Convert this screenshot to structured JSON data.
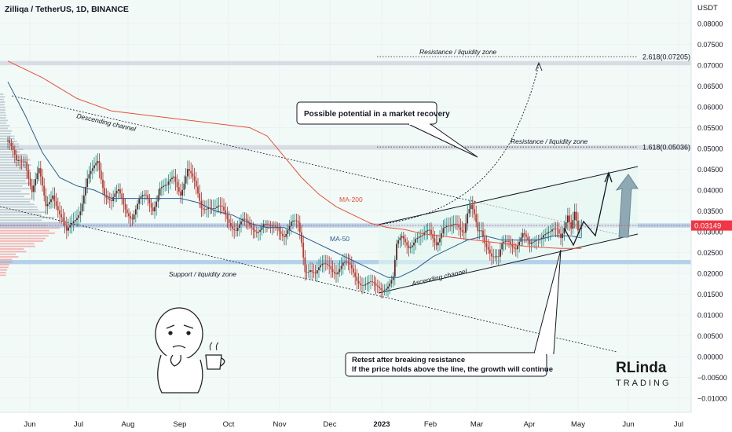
{
  "header": {
    "title": "Zilliqa / TetherUS, 1D, BINANCE"
  },
  "axis": {
    "unit": "USDT"
  },
  "chart_data": {
    "type": "candlestick",
    "title": "Zilliqa / TetherUS, 1D, BINANCE",
    "ylabel": "USDT",
    "ylim": [
      -0.011,
      0.0835
    ],
    "y_ticks": [
      0.08,
      0.075,
      0.07,
      0.065,
      0.06,
      0.055,
      0.05,
      0.045,
      0.04,
      0.035,
      0.03,
      0.025,
      0.02,
      0.015,
      0.01,
      0.005,
      0,
      -0.005,
      -0.01
    ],
    "y_tick_labels": [
      "0.08000",
      "0.07500",
      "0.07000",
      "0.06500",
      "0.06000",
      "0.05500",
      "0.05000",
      "0.04500",
      "0.04000",
      "0.03500",
      "0.03000",
      "0.02500",
      "0.02000",
      "0.01500",
      "0.01000",
      "0.00500",
      "0.00000",
      "−0.00500",
      "−0.01000"
    ],
    "x_ticks": [
      "Jun",
      "Jul",
      "Aug",
      "Sep",
      "Oct",
      "Nov",
      "Dec",
      "2023",
      "Feb",
      "Mar",
      "Apr",
      "May",
      "Jun",
      "Jul"
    ],
    "current_price": {
      "value": 0.03149,
      "label": "0.03149",
      "color": "#f23645"
    },
    "price_path": [
      [
        0,
        0.052
      ],
      [
        5,
        0.046
      ],
      [
        10,
        0.048
      ],
      [
        14,
        0.04
      ],
      [
        18,
        0.044
      ],
      [
        22,
        0.036
      ],
      [
        26,
        0.04
      ],
      [
        30,
        0.034
      ],
      [
        34,
        0.029
      ],
      [
        38,
        0.033
      ],
      [
        42,
        0.036
      ],
      [
        46,
        0.042
      ],
      [
        49,
        0.044
      ],
      [
        52,
        0.047
      ],
      [
        56,
        0.04
      ],
      [
        60,
        0.037
      ],
      [
        64,
        0.039
      ],
      [
        68,
        0.036
      ],
      [
        72,
        0.034
      ],
      [
        76,
        0.037
      ],
      [
        80,
        0.038
      ],
      [
        84,
        0.036
      ],
      [
        88,
        0.041
      ],
      [
        92,
        0.04
      ],
      [
        96,
        0.043
      ],
      [
        100,
        0.04
      ],
      [
        104,
        0.045
      ],
      [
        108,
        0.041
      ],
      [
        112,
        0.036
      ],
      [
        116,
        0.037
      ],
      [
        120,
        0.035
      ],
      [
        124,
        0.035
      ],
      [
        128,
        0.033
      ],
      [
        132,
        0.031
      ],
      [
        136,
        0.032
      ],
      [
        140,
        0.031
      ],
      [
        144,
        0.031
      ],
      [
        148,
        0.032
      ],
      [
        152,
        0.03
      ],
      [
        156,
        0.031
      ],
      [
        160,
        0.03
      ],
      [
        164,
        0.032
      ],
      [
        168,
        0.031
      ],
      [
        170,
        0.027
      ],
      [
        172,
        0.021
      ],
      [
        175,
        0.022
      ],
      [
        178,
        0.02
      ],
      [
        182,
        0.021
      ],
      [
        186,
        0.022
      ],
      [
        190,
        0.021
      ],
      [
        194,
        0.022
      ],
      [
        198,
        0.021
      ],
      [
        202,
        0.019
      ],
      [
        206,
        0.018
      ],
      [
        210,
        0.017
      ],
      [
        213,
        0.016
      ],
      [
        216,
        0.0165
      ],
      [
        220,
        0.018
      ],
      [
        223,
        0.019
      ],
      [
        225,
        0.026
      ],
      [
        228,
        0.028
      ],
      [
        232,
        0.027
      ],
      [
        236,
        0.029
      ],
      [
        240,
        0.028
      ],
      [
        244,
        0.03
      ],
      [
        248,
        0.028
      ],
      [
        252,
        0.031
      ],
      [
        256,
        0.03
      ],
      [
        260,
        0.032
      ],
      [
        264,
        0.031
      ],
      [
        266,
        0.035
      ],
      [
        268,
        0.036
      ],
      [
        270,
        0.033
      ],
      [
        272,
        0.029
      ],
      [
        274,
        0.03
      ],
      [
        276,
        0.028
      ],
      [
        278,
        0.027
      ],
      [
        280,
        0.025
      ],
      [
        282,
        0.024
      ],
      [
        284,
        0.023
      ],
      [
        286,
        0.026
      ],
      [
        290,
        0.028
      ],
      [
        294,
        0.027
      ],
      [
        298,
        0.029
      ],
      [
        302,
        0.026
      ],
      [
        306,
        0.029
      ],
      [
        310,
        0.03
      ],
      [
        314,
        0.029
      ],
      [
        318,
        0.03
      ],
      [
        320,
        0.029
      ],
      [
        322,
        0.032
      ],
      [
        324,
        0.035
      ],
      [
        326,
        0.031
      ],
      [
        328,
        0.034
      ],
      [
        330,
        0.029
      ],
      [
        332,
        0.03
      ]
    ],
    "series": [
      {
        "name": "MA-200",
        "color": "#e8503a",
        "values": [
          [
            0,
            0.071
          ],
          [
            20,
            0.067
          ],
          [
            40,
            0.062
          ],
          [
            60,
            0.059
          ],
          [
            80,
            0.058
          ],
          [
            100,
            0.057
          ],
          [
            120,
            0.056
          ],
          [
            140,
            0.055
          ],
          [
            150,
            0.053
          ],
          [
            160,
            0.048
          ],
          [
            170,
            0.043
          ],
          [
            180,
            0.039
          ],
          [
            190,
            0.036
          ],
          [
            200,
            0.034
          ],
          [
            210,
            0.032
          ],
          [
            220,
            0.031
          ],
          [
            230,
            0.0305
          ],
          [
            240,
            0.0295
          ],
          [
            250,
            0.029
          ],
          [
            260,
            0.0285
          ],
          [
            270,
            0.028
          ],
          [
            280,
            0.0275
          ],
          [
            290,
            0.027
          ],
          [
            300,
            0.0265
          ],
          [
            310,
            0.0262
          ],
          [
            320,
            0.026
          ],
          [
            332,
            0.026
          ]
        ]
      },
      {
        "name": "MA-50",
        "color": "#2a5b8f",
        "values": [
          [
            0,
            0.066
          ],
          [
            10,
            0.058
          ],
          [
            20,
            0.049
          ],
          [
            30,
            0.043
          ],
          [
            40,
            0.041
          ],
          [
            50,
            0.04
          ],
          [
            60,
            0.038
          ],
          [
            70,
            0.038
          ],
          [
            80,
            0.038
          ],
          [
            90,
            0.038
          ],
          [
            100,
            0.038
          ],
          [
            110,
            0.037
          ],
          [
            120,
            0.035
          ],
          [
            130,
            0.034
          ],
          [
            140,
            0.032
          ],
          [
            150,
            0.031
          ],
          [
            160,
            0.031
          ],
          [
            170,
            0.029
          ],
          [
            180,
            0.027
          ],
          [
            190,
            0.025
          ],
          [
            200,
            0.023
          ],
          [
            210,
            0.021
          ],
          [
            220,
            0.019
          ],
          [
            226,
            0.019
          ],
          [
            236,
            0.021
          ],
          [
            246,
            0.024
          ],
          [
            256,
            0.026
          ],
          [
            266,
            0.028
          ],
          [
            276,
            0.029
          ],
          [
            286,
            0.028
          ],
          [
            296,
            0.028
          ],
          [
            306,
            0.028
          ],
          [
            316,
            0.029
          ],
          [
            326,
            0.029
          ],
          [
            332,
            0.0285
          ]
        ]
      }
    ],
    "zones": [
      {
        "label": "",
        "from": 0.07,
        "to": 0.071,
        "color": "#cfd3dc"
      },
      {
        "label": "",
        "from": 0.0497,
        "to": 0.0508,
        "color": "#cfd3dc"
      },
      {
        "label": "",
        "from": 0.031,
        "to": 0.032,
        "color": "#9fc3e6"
      },
      {
        "label": "",
        "from": 0.0222,
        "to": 0.0232,
        "color": "#9fc3e6"
      }
    ],
    "fib_levels": [
      {
        "label": "2.618(0.07205)",
        "value": 0.07205
      },
      {
        "label": "1.618(0.05036)",
        "value": 0.05036
      }
    ],
    "annotations": {
      "resistance_top": "Resistance / liquidity zone",
      "resistance_mid": "Resistance / liquidity zone",
      "support": "Support / liquidity zone",
      "descending": "Descending channel",
      "ascending": "Ascending channel",
      "ma200": "MA-200",
      "ma50": "MA-50",
      "callout_potential": "Possible potential in a market recovery",
      "callout_retest_1": "Retest after breaking resistance",
      "callout_retest_2": "If the price holds above the line, the growth will continue"
    },
    "grid": true,
    "legend": "none"
  },
  "logo": {
    "text": "RLinda TRADING",
    "top": "RLinda",
    "bottom": "TRADING"
  }
}
